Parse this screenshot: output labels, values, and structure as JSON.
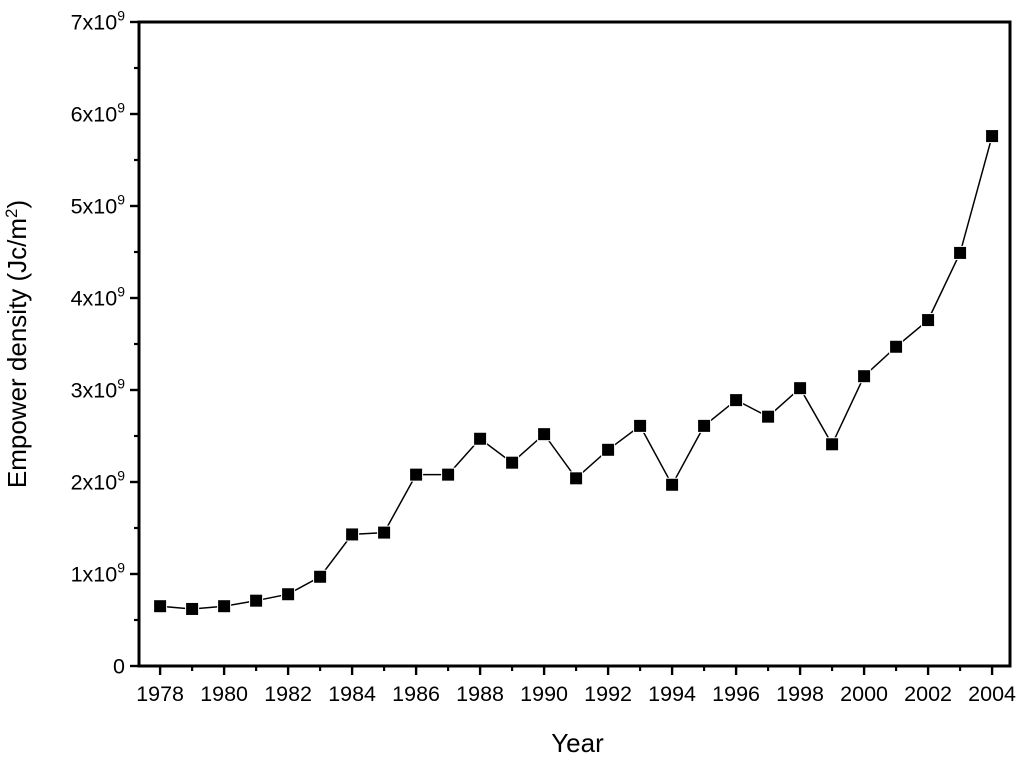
{
  "chart_data": {
    "type": "line",
    "title": "",
    "xlabel": "Year",
    "ylabel": "Empower density (Jc/m^2)",
    "x": [
      1978,
      1979,
      1980,
      1981,
      1982,
      1983,
      1984,
      1985,
      1986,
      1987,
      1988,
      1989,
      1990,
      1991,
      1992,
      1993,
      1994,
      1995,
      1996,
      1997,
      1998,
      1999,
      2000,
      2001,
      2002,
      2003,
      2004
    ],
    "values": [
      650000000.0,
      620000000.0,
      650000000.0,
      710000000.0,
      780000000.0,
      970000000.0,
      1430000000.0,
      1450000000.0,
      2080000000.0,
      2080000000.0,
      2470000000.0,
      2210000000.0,
      2520000000.0,
      2040000000.0,
      2350000000.0,
      2610000000.0,
      1970000000.0,
      2610000000.0,
      2890000000.0,
      2710000000.0,
      3020000000.0,
      2410000000.0,
      3150000000.0,
      3470000000.0,
      3760000000.0,
      4490000000.0,
      5760000000.0
    ],
    "series_name": "Empower density",
    "ylim": [
      0,
      7000000000.0
    ],
    "xlim": [
      1977.34,
      2004.56
    ],
    "xticks_major": [
      1978,
      1980,
      1982,
      1984,
      1986,
      1988,
      1990,
      1992,
      1994,
      1996,
      1998,
      2000,
      2002,
      2004
    ],
    "xticks_minor": [
      1979,
      1981,
      1983,
      1985,
      1987,
      1989,
      1991,
      1993,
      1995,
      1997,
      1999,
      2001,
      2003
    ],
    "xtick_labels": [
      "1978",
      "1980",
      "1982",
      "1984",
      "1986",
      "1988",
      "1990",
      "1992",
      "1994",
      "1996",
      "1998",
      "2000",
      "2002",
      "2004"
    ],
    "yticks_major": [
      0,
      1000000000.0,
      2000000000.0,
      3000000000.0,
      4000000000.0,
      5000000000.0,
      6000000000.0,
      7000000000.0
    ],
    "ytick_labels": [
      "0",
      "1x10^9",
      "2x10^9",
      "3x10^9",
      "4x10^9",
      "5x10^9",
      "6x10^9",
      "7x10^9"
    ],
    "yticks_minor": [
      500000000.0,
      1500000000.0,
      2500000000.0,
      3500000000.0,
      4500000000.0,
      5500000000.0,
      6500000000.0
    ],
    "grid": false,
    "legend": "none",
    "marker": "filled-square",
    "line_color": "#000000",
    "marker_color": "#000000",
    "frame_color": "#000000",
    "background": "#ffffff"
  }
}
